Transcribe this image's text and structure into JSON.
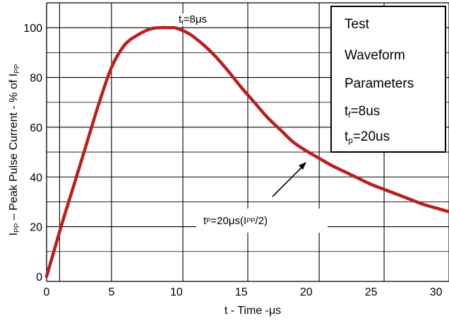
{
  "chart_data": {
    "type": "line",
    "xlabel": "t - Time -μs",
    "xlim": [
      0,
      31
    ],
    "ylim": [
      -2,
      110
    ],
    "xticks": [
      0,
      5,
      10,
      15,
      20,
      25,
      30
    ],
    "yticks": [
      0,
      20,
      40,
      60,
      80,
      100
    ],
    "grid": true,
    "series": [
      {
        "color": "#b8201e",
        "x": [
          0,
          1,
          2,
          3,
          4,
          5,
          6,
          7,
          8,
          8.7,
          9.5,
          10,
          11,
          12,
          13,
          14,
          15,
          16,
          17,
          18,
          19,
          20,
          21,
          22,
          23,
          24,
          25,
          26,
          27,
          28,
          29,
          30,
          31
        ],
        "y": [
          0,
          18,
          35,
          52,
          69,
          84,
          93,
          97,
          99.5,
          100,
          100,
          99.8,
          97.5,
          93.5,
          88.5,
          82.5,
          76,
          70,
          64,
          59,
          54,
          50.5,
          47.5,
          44.5,
          42,
          39.5,
          37,
          35,
          33,
          31,
          29,
          27.5,
          26
        ]
      }
    ]
  },
  "text": {
    "ylabel_main": "I",
    "ylabel_sub_a": "PP",
    "ylabel_mid": " – Peak Pulse Current - % of ",
    "ylabel_end": "I",
    "ylabel_sub_b": "PP",
    "tf_pre": "t",
    "tf_sub": "f",
    "tf_post": "=8μs",
    "tp_pre": "t",
    "tp_sub": "P",
    "tp_mid": " =20μs(I",
    "tp_sub2": "PP",
    "tp_post": " /2)"
  },
  "legend": {
    "line1": "Test",
    "line2": "Waveform",
    "line3": "Parameters",
    "tf_pre": "t",
    "tf_sub": "f",
    "tf_post": "=8us",
    "tp_pre": "t",
    "tp_sub": "p",
    "tp_post": "=20us"
  }
}
